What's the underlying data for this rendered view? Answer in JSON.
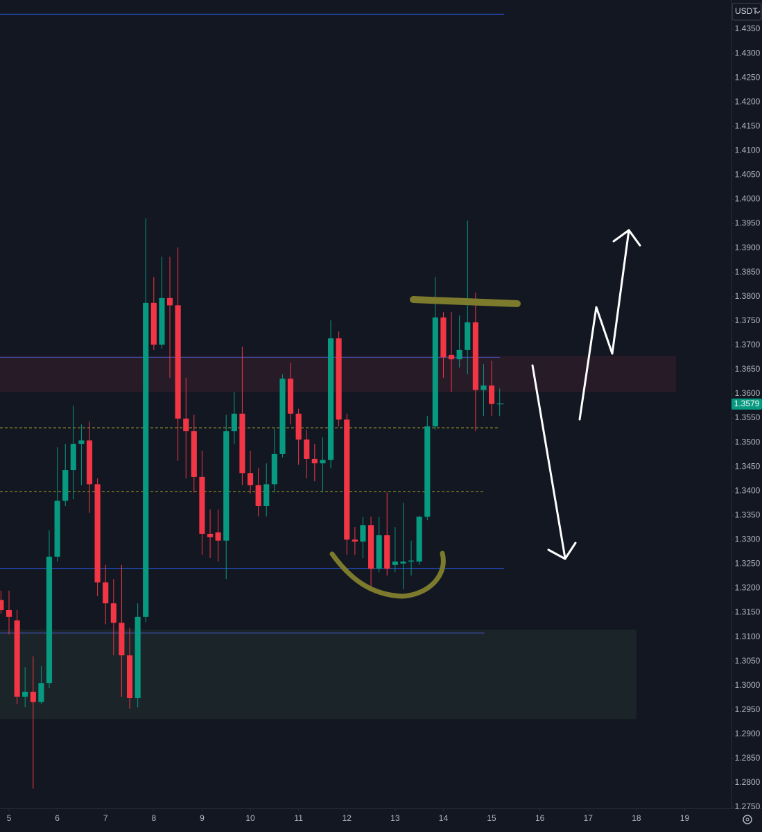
{
  "chart_data": {
    "type": "candlestick",
    "currency": "USDT",
    "x": [
      4.833,
      5,
      5.167,
      5.333,
      5.5,
      5.667,
      5.833,
      6,
      6.167,
      6.333,
      6.5,
      6.667,
      6.833,
      7,
      7.167,
      7.333,
      7.5,
      7.667,
      7.833,
      8,
      8.167,
      8.333,
      8.5,
      8.667,
      8.833,
      9,
      9.167,
      9.333,
      9.5,
      9.667,
      9.833,
      10,
      10.167,
      10.333,
      10.5,
      10.667,
      10.833,
      11,
      11.167,
      11.333,
      11.5,
      11.667,
      11.833,
      12,
      12.167,
      12.333,
      12.5,
      12.667,
      12.833,
      13,
      13.167,
      13.333,
      13.5,
      13.667,
      13.833,
      14,
      14.167,
      14.333,
      14.5,
      14.667,
      14.833,
      15,
      15.167
    ],
    "open": [
      1.3176,
      1.3155,
      1.3134,
      1.2977,
      1.2987,
      1.2966,
      1.3005,
      1.3265,
      1.338,
      1.3443,
      1.3497,
      1.3504,
      1.3414,
      1.3212,
      1.3169,
      1.3129,
      1.3062,
      1.2974,
      1.3141,
      1.3787,
      1.3701,
      1.3797,
      1.3782,
      1.3549,
      1.3523,
      1.3429,
      1.3312,
      1.3315,
      1.3298,
      1.3523,
      1.3559,
      1.3437,
      1.3412,
      1.3369,
      1.3414,
      1.3476,
      1.3631,
      1.3559,
      1.3506,
      1.3466,
      1.3457,
      1.3464,
      1.3714,
      1.3547,
      1.33,
      1.3296,
      1.333,
      1.324,
      1.3309,
      1.3248,
      1.3251,
      1.3255,
      1.3255,
      1.3347,
      1.3533,
      1.3757,
      1.368,
      1.3671,
      1.369,
      1.3747,
      1.3608,
      1.3617,
      1.3579
    ],
    "high": [
      1.3195,
      1.3195,
      1.3155,
      1.3038,
      1.306,
      1.304,
      1.3319,
      1.349,
      1.3497,
      1.3576,
      1.3537,
      1.3543,
      1.3426,
      1.3248,
      1.3219,
      1.3248,
      1.3119,
      1.3169,
      1.3961,
      1.384,
      1.3882,
      1.3882,
      1.3901,
      1.3633,
      1.3557,
      1.3483,
      1.3362,
      1.3362,
      1.3557,
      1.3604,
      1.3697,
      1.3483,
      1.3447,
      1.3457,
      1.3529,
      1.364,
      1.3664,
      1.3569,
      1.3526,
      1.3497,
      1.3511,
      1.3751,
      1.3728,
      1.3559,
      1.3326,
      1.3347,
      1.3347,
      1.3347,
      1.3397,
      1.3326,
      1.3376,
      1.3298,
      1.3349,
      1.3554,
      1.384,
      1.3768,
      1.3768,
      1.3761,
      1.3956,
      1.3808,
      1.3661,
      1.3668,
      1.3611
    ],
    "low": [
      1.3148,
      1.3105,
      1.2962,
      1.2955,
      1.2788,
      1.2962,
      1.2995,
      1.3255,
      1.3369,
      1.3383,
      1.3412,
      1.3355,
      1.3184,
      1.3126,
      1.3062,
      1.2977,
      1.2952,
      1.2955,
      1.313,
      1.369,
      1.3693,
      1.3633,
      1.3462,
      1.3426,
      1.3397,
      1.3269,
      1.3262,
      1.3255,
      1.3219,
      1.3497,
      1.3412,
      1.3395,
      1.3348,
      1.3348,
      1.3397,
      1.3469,
      1.3537,
      1.3454,
      1.3426,
      1.342,
      1.3397,
      1.3447,
      1.3533,
      1.3269,
      1.3269,
      1.3262,
      1.3198,
      1.3233,
      1.3226,
      1.3233,
      1.3198,
      1.3226,
      1.3248,
      1.334,
      1.3526,
      1.3633,
      1.3604,
      1.3654,
      1.364,
      1.3523,
      1.3554,
      1.3554,
      1.3554
    ],
    "close": [
      1.3155,
      1.3141,
      1.2977,
      1.2987,
      1.2966,
      1.3005,
      1.3265,
      1.338,
      1.3443,
      1.3497,
      1.3504,
      1.3414,
      1.3212,
      1.3169,
      1.3129,
      1.3062,
      1.2974,
      1.3141,
      1.3787,
      1.3701,
      1.3797,
      1.3782,
      1.3549,
      1.3523,
      1.3429,
      1.3312,
      1.3305,
      1.3298,
      1.3523,
      1.3559,
      1.3437,
      1.3412,
      1.3369,
      1.3414,
      1.3476,
      1.3631,
      1.3559,
      1.3506,
      1.3466,
      1.3457,
      1.3464,
      1.3714,
      1.3547,
      1.33,
      1.3296,
      1.333,
      1.324,
      1.3309,
      1.324,
      1.3255,
      1.3255,
      1.3257,
      1.3347,
      1.3533,
      1.3757,
      1.3675,
      1.3671,
      1.369,
      1.3747,
      1.3608,
      1.3617,
      1.3579,
      1.358
    ],
    "up_color": "#089981",
    "down_color": "#f23645",
    "last_price": {
      "value": 1.3579,
      "label": "1.3579"
    },
    "levels": [
      {
        "price": 1.4381,
        "end": 15.26,
        "color": "#2962ff",
        "dashed": false
      },
      {
        "price": 1.3675,
        "end": 15.17,
        "color": "#3f51b5",
        "dashed": false
      },
      {
        "price": 1.353,
        "end": 15.17,
        "color": "#9e9a2a",
        "dashed": true
      },
      {
        "price": 1.3399,
        "end": 14.85,
        "color": "#9e9a2a",
        "dashed": true
      },
      {
        "price": 1.3241,
        "end": 15.26,
        "color": "#2962ff",
        "dashed": false
      },
      {
        "price": 1.3108,
        "end": 14.85,
        "color": "#3f51b5",
        "dashed": false
      }
    ],
    "zones": [
      {
        "top": 1.3678,
        "bottom": 1.3604,
        "end": 18.82,
        "color": "#281b28"
      },
      {
        "top": 1.3115,
        "bottom": 1.2931,
        "end": 18.0,
        "color": "#1b2428"
      }
    ],
    "xlim": [
      4.813,
      19.97
    ],
    "ylim": [
      1.275,
      1.441
    ],
    "xticks": [
      5,
      6,
      7,
      8,
      9,
      10,
      11,
      12,
      13,
      14,
      15,
      16,
      17,
      18,
      19
    ],
    "yticks": [
      {
        "value": 1.435,
        "label": "1.4350"
      },
      {
        "value": 1.43,
        "label": "1.4300"
      },
      {
        "value": 1.425,
        "label": "1.4250"
      },
      {
        "value": 1.42,
        "label": "1.4200"
      },
      {
        "value": 1.415,
        "label": "1.4150"
      },
      {
        "value": 1.41,
        "label": "1.4100"
      },
      {
        "value": 1.405,
        "label": "1.4050"
      },
      {
        "value": 1.4,
        "label": "1.4000"
      },
      {
        "value": 1.395,
        "label": "1.3950"
      },
      {
        "value": 1.39,
        "label": "1.3900"
      },
      {
        "value": 1.385,
        "label": "1.3850"
      },
      {
        "value": 1.38,
        "label": "1.3800"
      },
      {
        "value": 1.375,
        "label": "1.3750"
      },
      {
        "value": 1.37,
        "label": "1.3700"
      },
      {
        "value": 1.365,
        "label": "1.3650"
      },
      {
        "value": 1.36,
        "label": "1.3600"
      },
      {
        "value": 1.355,
        "label": "1.3550"
      },
      {
        "value": 1.35,
        "label": "1.3500"
      },
      {
        "value": 1.345,
        "label": "1.3450"
      },
      {
        "value": 1.34,
        "label": "1.3400"
      },
      {
        "value": 1.335,
        "label": "1.3350"
      },
      {
        "value": 1.33,
        "label": "1.3300"
      },
      {
        "value": 1.325,
        "label": "1.3250"
      },
      {
        "value": 1.32,
        "label": "1.3200"
      },
      {
        "value": 1.315,
        "label": "1.3150"
      },
      {
        "value": 1.31,
        "label": "1.3100"
      },
      {
        "value": 1.305,
        "label": "1.3050"
      },
      {
        "value": 1.3,
        "label": "1.3000"
      },
      {
        "value": 1.295,
        "label": "1.2950"
      },
      {
        "value": 1.29,
        "label": "1.2900"
      },
      {
        "value": 1.285,
        "label": "1.2850"
      },
      {
        "value": 1.28,
        "label": "1.2800"
      },
      {
        "value": 1.275,
        "label": "1.2750"
      }
    ]
  }
}
